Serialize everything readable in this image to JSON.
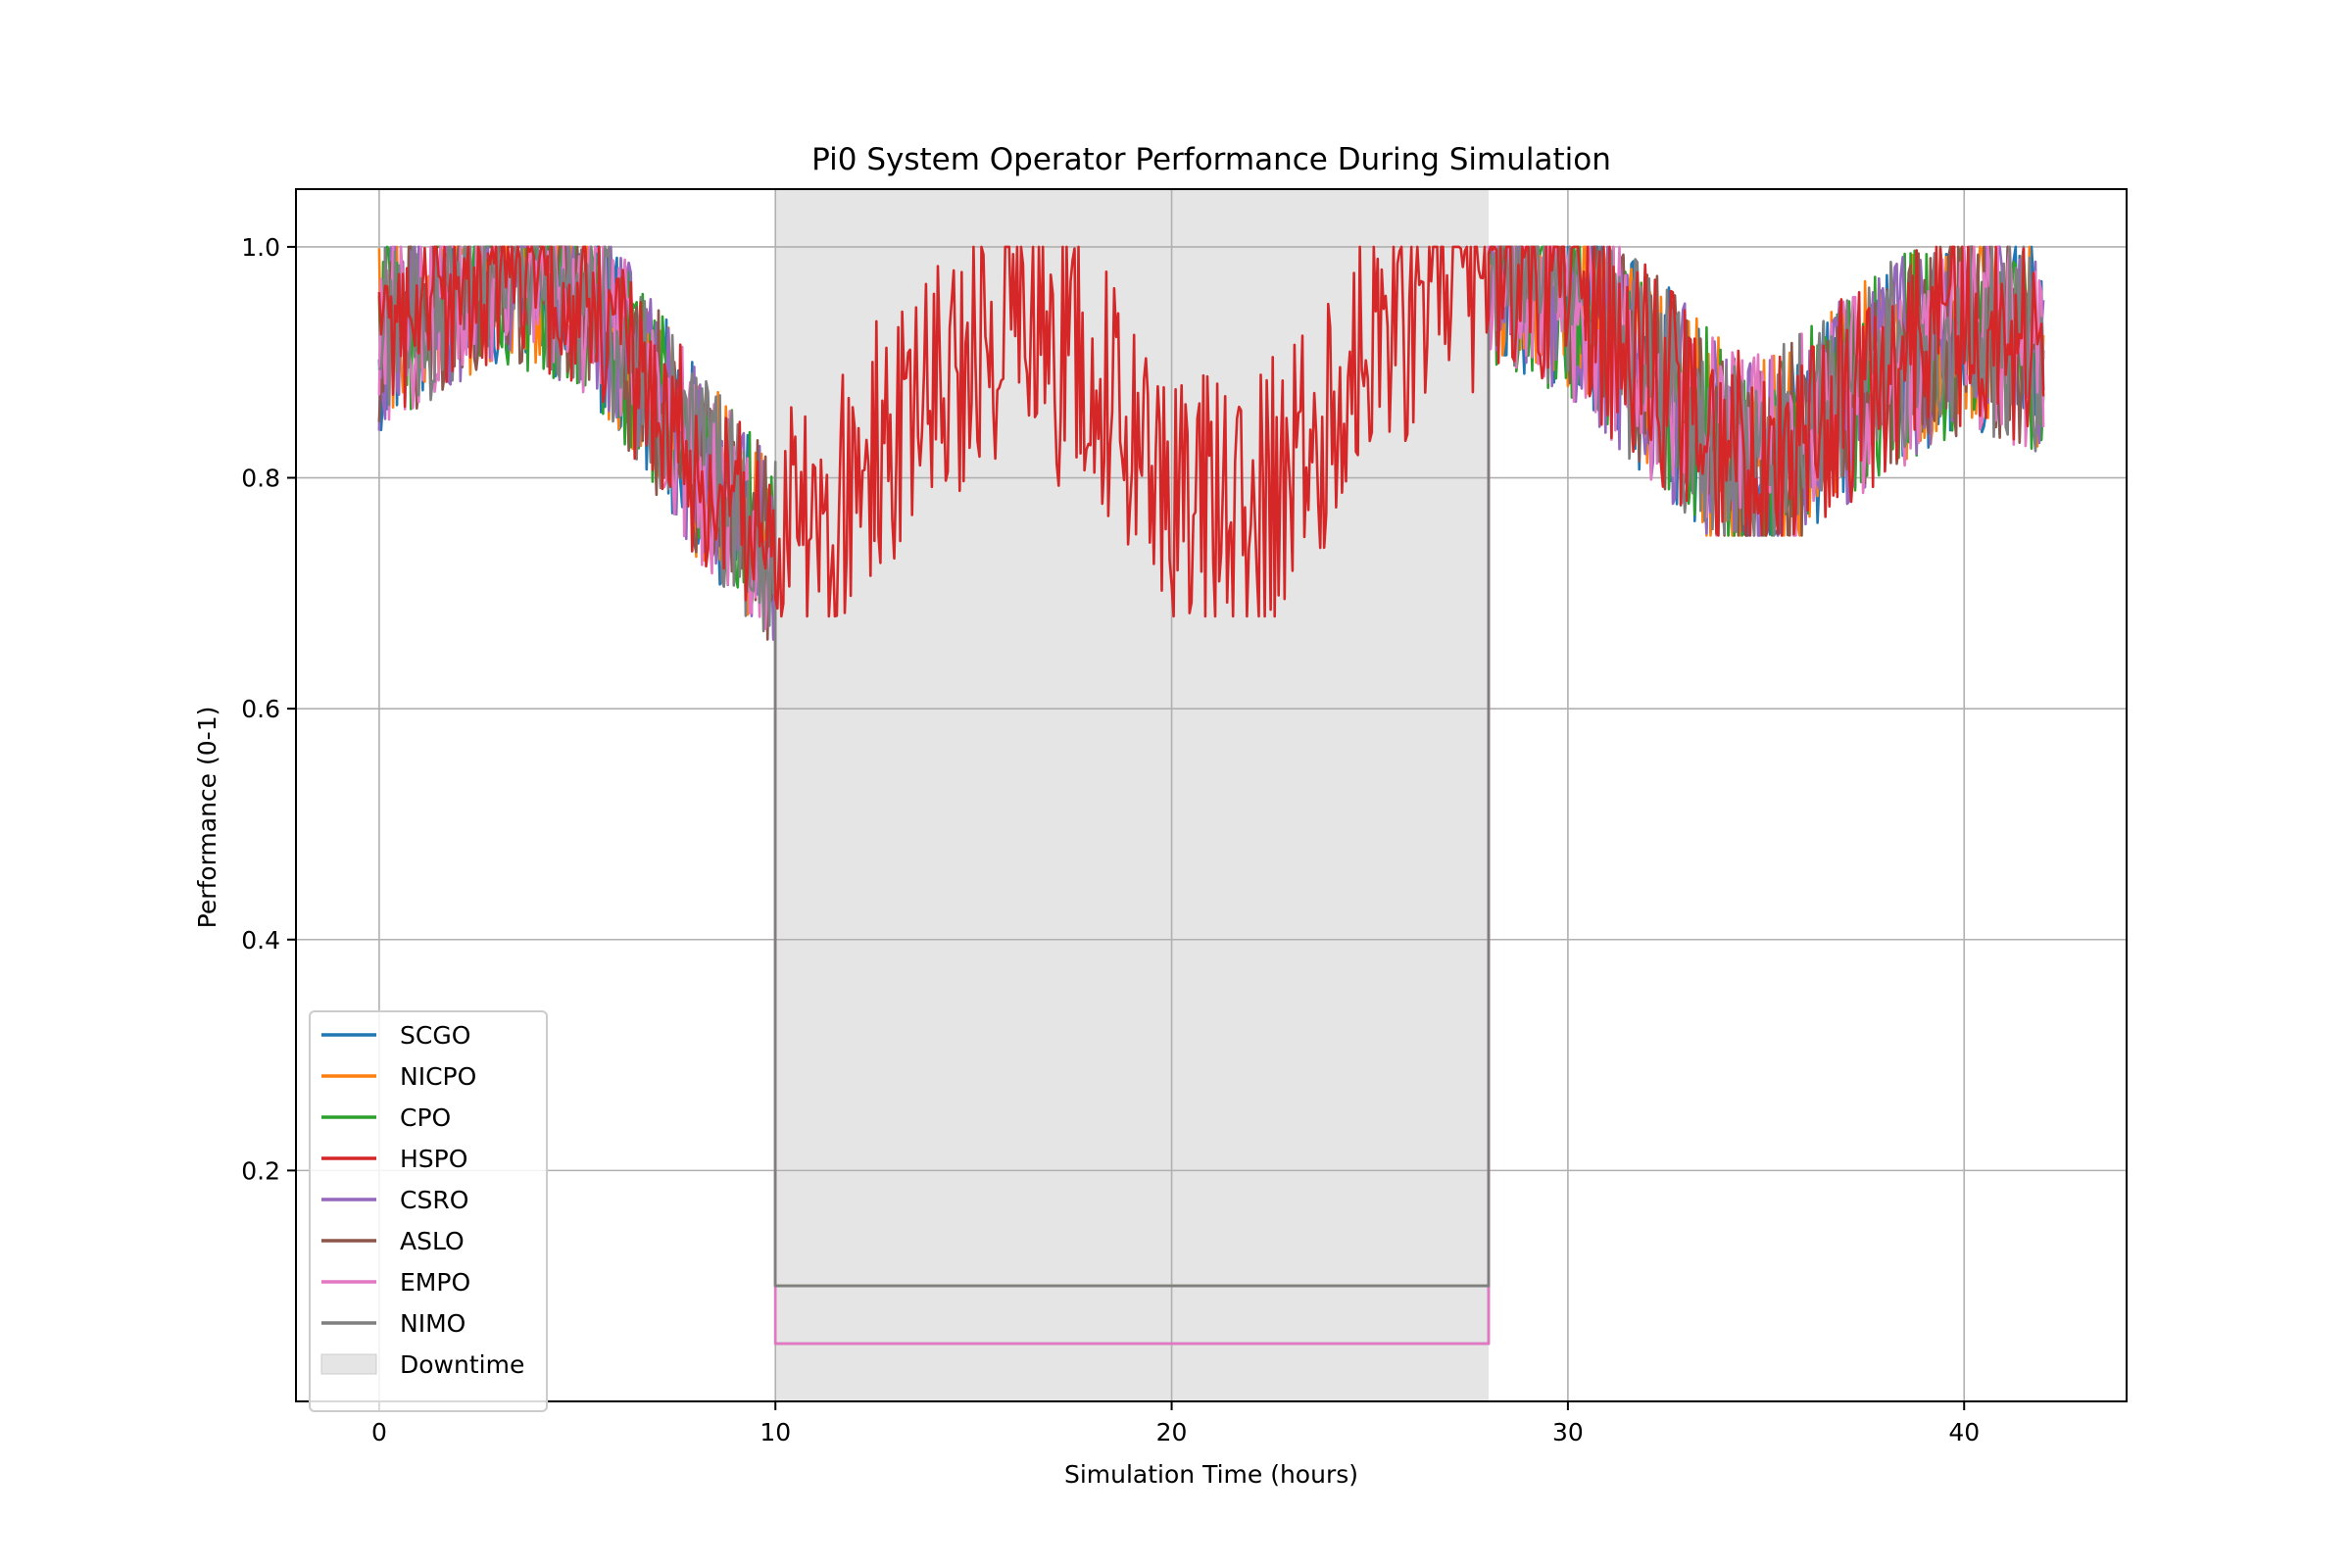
{
  "chart_data": {
    "type": "line",
    "title": "Pi0 System Operator Performance During Simulation",
    "xlabel": "Simulation Time (hours)",
    "ylabel": "Performance (0-1)",
    "xlim": [
      -2.1,
      44.1
    ],
    "ylim": [
      0.0,
      1.05
    ],
    "xticks": [
      0,
      10,
      20,
      30,
      40
    ],
    "yticks": [
      0.2,
      0.4,
      0.6,
      0.8,
      1.0
    ],
    "ytick_labels": [
      "0.2",
      "0.4",
      "0.6",
      "0.8",
      "1.0"
    ],
    "grid": true,
    "legend_position": "lower-left",
    "downtime": {
      "label": "Downtime",
      "start": 10,
      "end": 28,
      "color": "#e5e5e5"
    },
    "series": [
      {
        "name": "SCGO",
        "color": "#1f77b4",
        "downtime_value": 0.1
      },
      {
        "name": "NICPO",
        "color": "#ff7f0e",
        "downtime_value": 0.1
      },
      {
        "name": "CPO",
        "color": "#2ca02c",
        "downtime_value": 0.1
      },
      {
        "name": "HSPO",
        "color": "#d62728",
        "downtime_value": null
      },
      {
        "name": "CSRO",
        "color": "#9467bd",
        "downtime_value": 0.05
      },
      {
        "name": "ASLO",
        "color": "#8c564b",
        "downtime_value": 0.1
      },
      {
        "name": "EMPO",
        "color": "#e377c2",
        "downtime_value": 0.05
      },
      {
        "name": "NIMO",
        "color": "#7f7f7f",
        "downtime_value": 0.1
      }
    ],
    "trend": {
      "x": [
        0,
        1,
        3,
        5,
        6,
        8,
        10,
        13,
        16,
        18,
        20,
        22,
        25,
        27,
        28,
        30,
        32,
        34,
        35,
        38,
        40,
        42
      ],
      "y": [
        0.93,
        0.95,
        0.99,
        0.97,
        0.93,
        0.82,
        0.74,
        0.84,
        0.95,
        0.9,
        0.79,
        0.77,
        0.93,
        0.995,
        1.0,
        0.97,
        0.9,
        0.83,
        0.82,
        0.9,
        0.94,
        0.92
      ]
    }
  }
}
